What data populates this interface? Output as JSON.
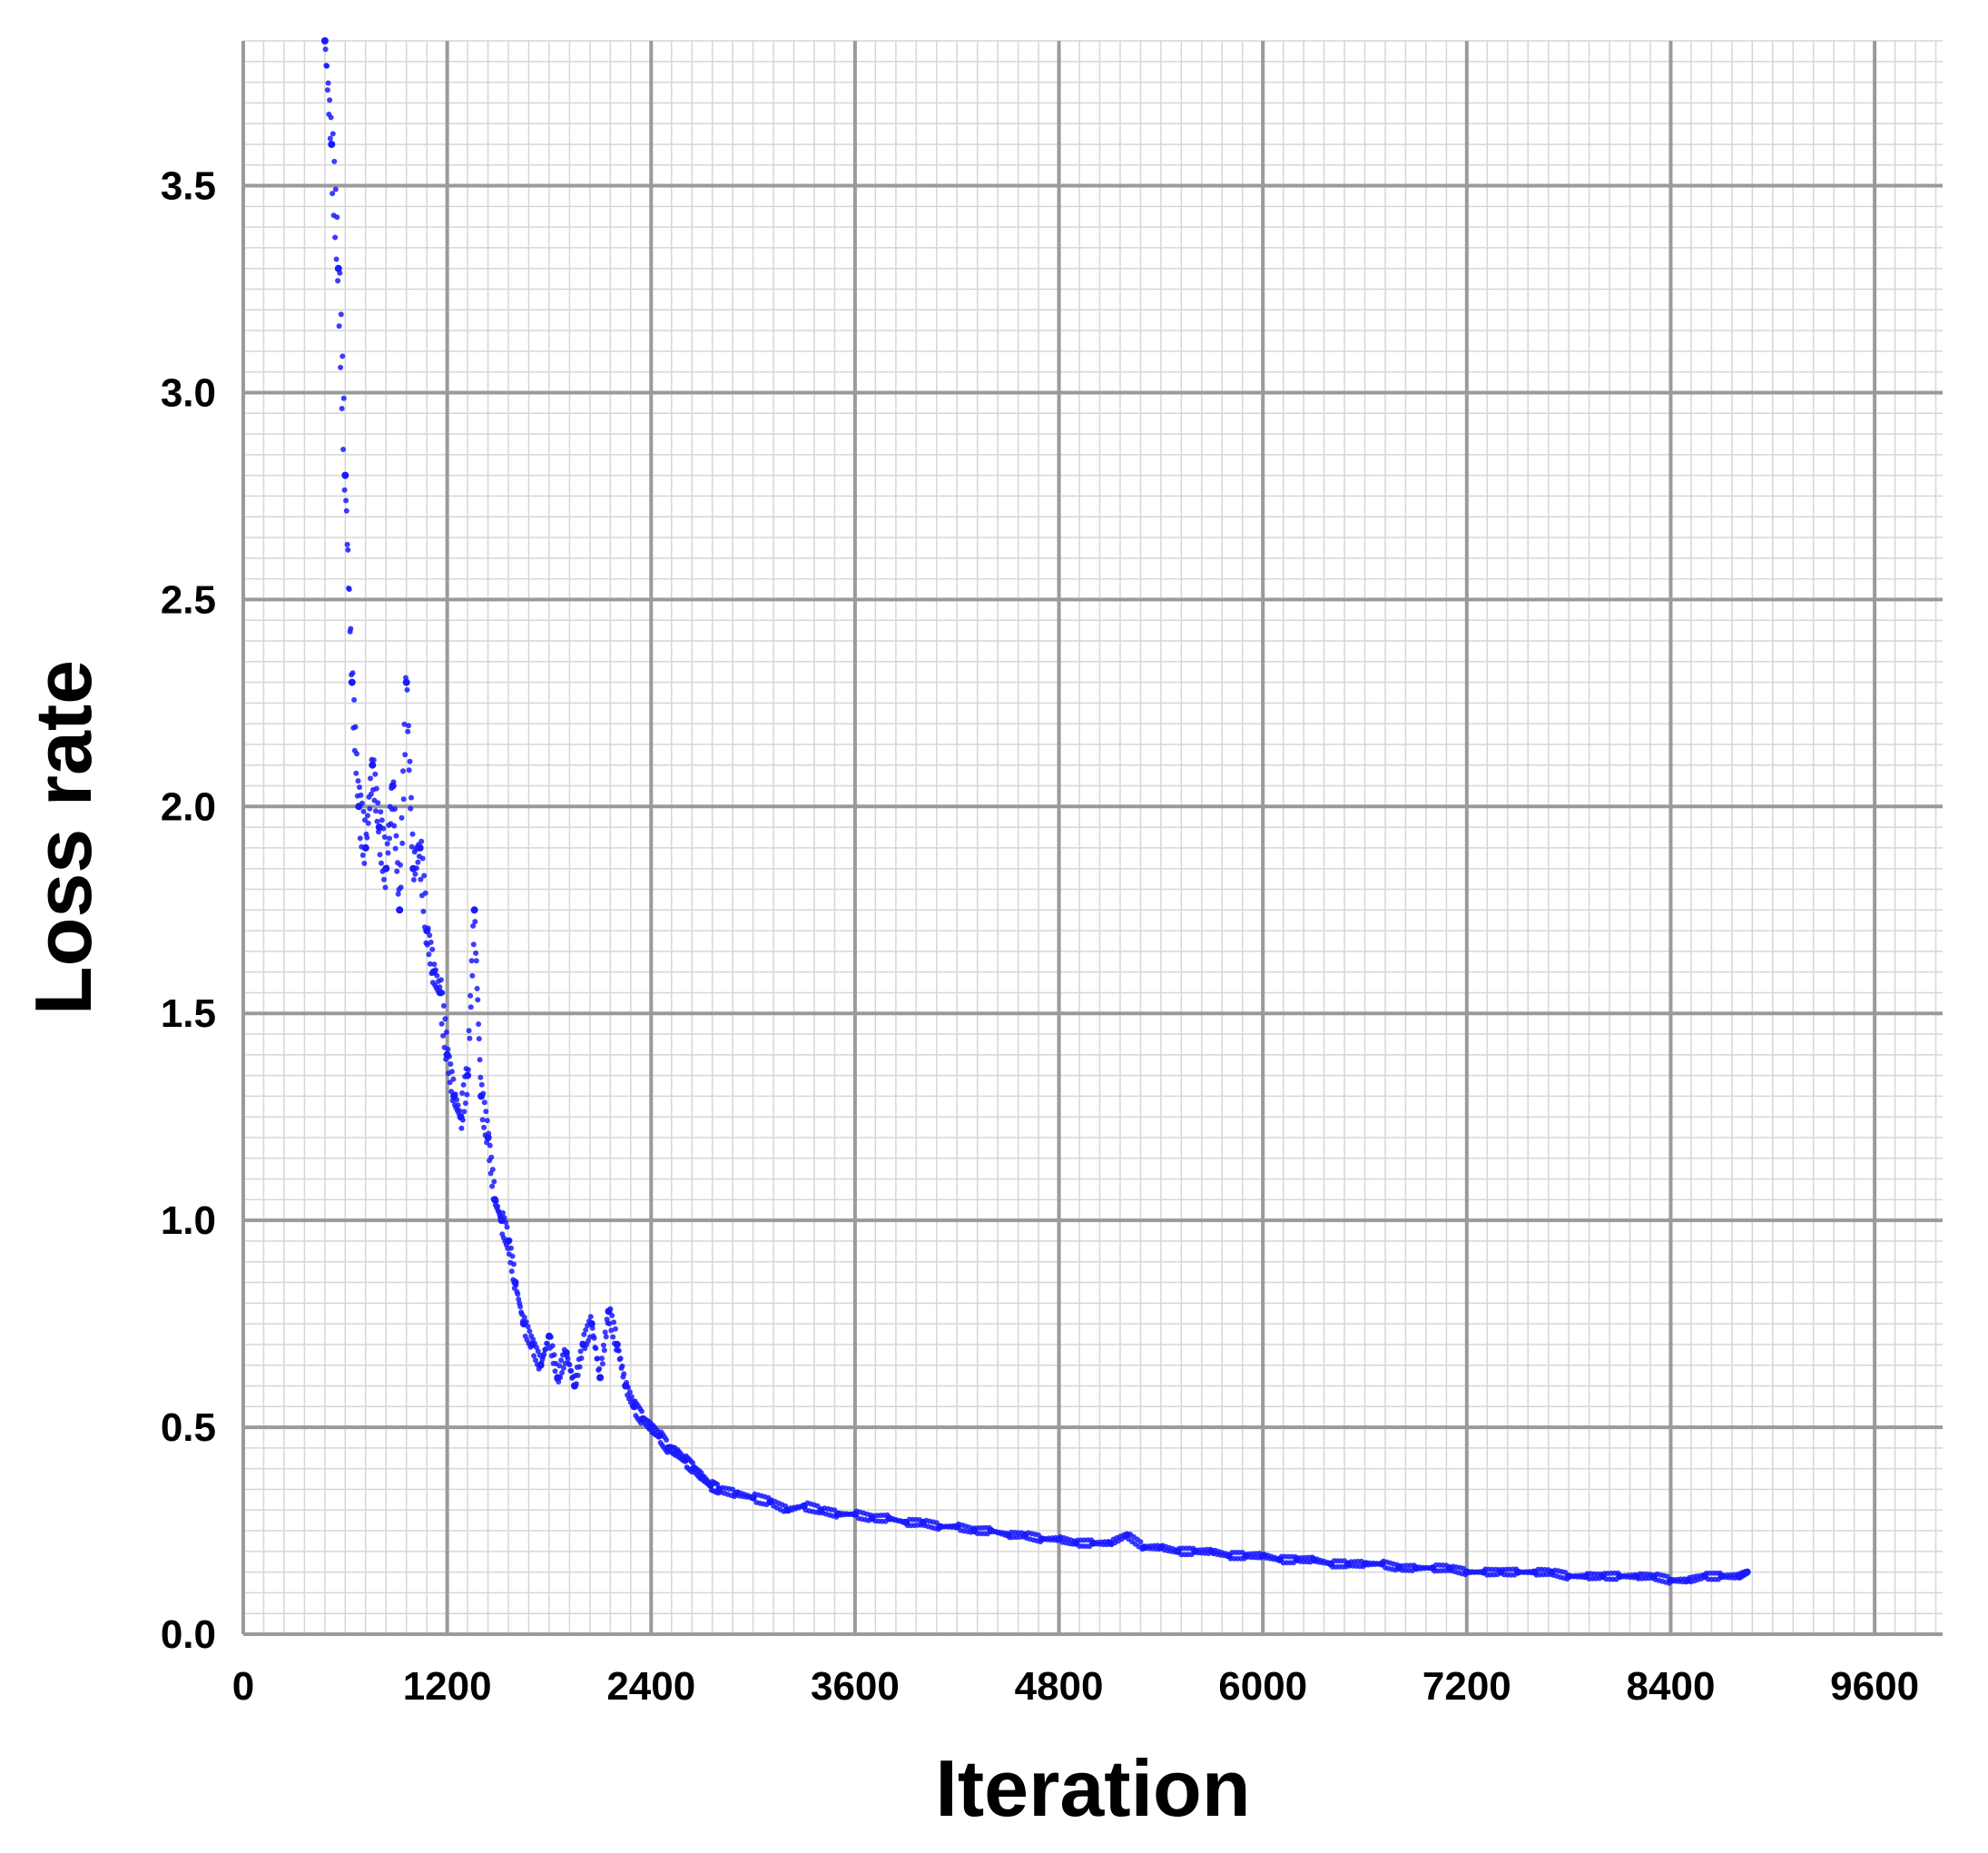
{
  "chart_data": {
    "type": "scatter",
    "title": "",
    "xlabel": "Iteration",
    "ylabel": "Loss rate",
    "xlim": [
      0,
      10000
    ],
    "ylim": [
      0,
      3.85
    ],
    "x_ticks": [
      0,
      1200,
      2400,
      3600,
      4800,
      6000,
      7200,
      8400,
      9600
    ],
    "x_tick_labels": [
      "0",
      "1200",
      "2400",
      "3600",
      "4800",
      "6000",
      "7200",
      "8400",
      "9600"
    ],
    "y_ticks": [
      0.0,
      0.5,
      1.0,
      1.5,
      2.0,
      2.5,
      3.0,
      3.5
    ],
    "y_tick_labels": [
      "0.0",
      "0.5",
      "1.0",
      "1.5",
      "2.0",
      "2.5",
      "3.0",
      "3.5"
    ],
    "grid": true,
    "minor_grid": true,
    "marker_color": "#1a1aff",
    "series": [
      {
        "x": [
          480,
          520,
          560,
          600,
          640,
          680,
          720,
          760,
          800,
          840,
          880,
          920,
          960,
          1000,
          1040,
          1080,
          1120,
          1160,
          1200,
          1240,
          1280,
          1320,
          1360,
          1400,
          1440,
          1480,
          1520,
          1560,
          1600,
          1650,
          1700,
          1750,
          1800,
          1850,
          1900,
          1950,
          2000,
          2050,
          2100,
          2150,
          2200,
          2250,
          2300,
          2350,
          2400,
          2450,
          2500,
          2550,
          2600,
          2650,
          2700,
          2750,
          2800,
          2900,
          3000,
          3100,
          3200,
          3300,
          3400,
          3500,
          3600,
          3700,
          3800,
          3900,
          4000,
          4100,
          4200,
          4300,
          4400,
          4500,
          4600,
          4700,
          4800,
          4900,
          5000,
          5100,
          5200,
          5300,
          5400,
          5500,
          5600,
          5700,
          5800,
          5900,
          6000,
          6100,
          6200,
          6300,
          6400,
          6500,
          6600,
          6700,
          6800,
          6900,
          7000,
          7100,
          7200,
          7300,
          7400,
          7500,
          7600,
          7700,
          7800,
          7900,
          8000,
          8100,
          8200,
          8300,
          8400,
          8500,
          8600,
          8700,
          8800,
          8850
        ],
        "y": [
          3.85,
          3.6,
          3.3,
          2.8,
          2.3,
          2.0,
          1.9,
          2.1,
          1.95,
          1.85,
          2.05,
          1.75,
          2.3,
          1.85,
          1.9,
          1.7,
          1.6,
          1.55,
          1.4,
          1.3,
          1.25,
          1.35,
          1.75,
          1.3,
          1.2,
          1.05,
          1.0,
          0.95,
          0.85,
          0.75,
          0.7,
          0.65,
          0.72,
          0.62,
          0.68,
          0.6,
          0.7,
          0.75,
          0.62,
          0.78,
          0.7,
          0.6,
          0.55,
          0.52,
          0.5,
          0.48,
          0.45,
          0.44,
          0.42,
          0.4,
          0.38,
          0.36,
          0.35,
          0.34,
          0.33,
          0.32,
          0.3,
          0.31,
          0.3,
          0.29,
          0.29,
          0.28,
          0.28,
          0.27,
          0.27,
          0.26,
          0.26,
          0.25,
          0.25,
          0.24,
          0.24,
          0.23,
          0.23,
          0.22,
          0.22,
          0.22,
          0.24,
          0.21,
          0.21,
          0.2,
          0.2,
          0.2,
          0.19,
          0.19,
          0.19,
          0.18,
          0.18,
          0.18,
          0.17,
          0.17,
          0.17,
          0.17,
          0.16,
          0.16,
          0.16,
          0.16,
          0.15,
          0.15,
          0.15,
          0.15,
          0.15,
          0.15,
          0.14,
          0.14,
          0.14,
          0.14,
          0.14,
          0.14,
          0.13,
          0.13,
          0.14,
          0.14,
          0.14,
          0.15
        ]
      }
    ]
  }
}
